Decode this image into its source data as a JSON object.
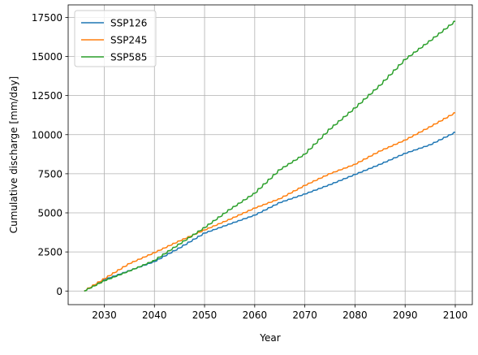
{
  "chart_data": {
    "type": "line",
    "xlabel": "Year",
    "ylabel": "Cumulative discharge [mm/day]",
    "xlim": [
      2022.8,
      2103.4
    ],
    "ylim": [
      -870,
      18300
    ],
    "xticks": [
      2030,
      2040,
      2050,
      2060,
      2070,
      2080,
      2090,
      2100
    ],
    "yticks": [
      0,
      2500,
      5000,
      7500,
      10000,
      12500,
      15000,
      17500
    ],
    "grid": true,
    "legend_position": "top-left",
    "x_start": 2026,
    "x_end": 2100,
    "series": [
      {
        "name": "SSP126",
        "color": "#1f77b4",
        "x": [
          2026,
          2030,
          2035,
          2040,
          2045,
          2050,
          2055,
          2060,
          2065,
          2070,
          2075,
          2080,
          2085,
          2090,
          2095,
          2100
        ],
        "values": [
          0,
          720,
          1300,
          1880,
          2750,
          3700,
          4280,
          4850,
          5650,
          6200,
          6800,
          7450,
          8100,
          8800,
          9350,
          10150
        ]
      },
      {
        "name": "SSP245",
        "color": "#ff7f0e",
        "x": [
          2026,
          2030,
          2035,
          2040,
          2045,
          2050,
          2055,
          2060,
          2065,
          2070,
          2075,
          2080,
          2085,
          2090,
          2095,
          2100
        ],
        "values": [
          0,
          780,
          1750,
          2450,
          3200,
          3900,
          4580,
          5300,
          5900,
          6750,
          7500,
          8100,
          8950,
          9650,
          10500,
          11400
        ]
      },
      {
        "name": "SSP585",
        "color": "#2ca02c",
        "x": [
          2026,
          2030,
          2035,
          2040,
          2045,
          2050,
          2055,
          2060,
          2065,
          2070,
          2075,
          2080,
          2085,
          2090,
          2095,
          2100
        ],
        "values": [
          0,
          650,
          1280,
          1950,
          3000,
          4050,
          5200,
          6250,
          7750,
          8750,
          10350,
          11700,
          13150,
          14800,
          16000,
          17250
        ]
      }
    ]
  }
}
